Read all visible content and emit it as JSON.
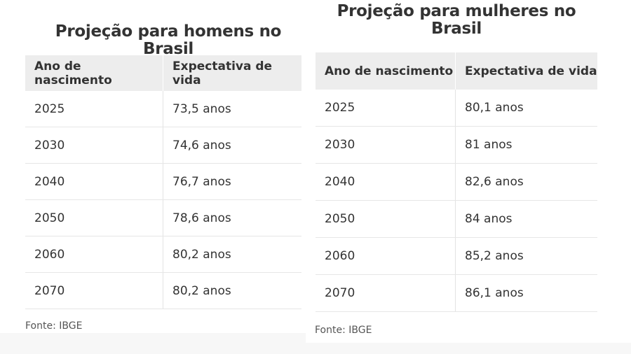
{
  "men": {
    "title": "Projeção para homens no Brasil",
    "headers": [
      "Ano de nascimento",
      "Expectativa de vida"
    ],
    "rows": [
      [
        "2025",
        "73,5 anos"
      ],
      [
        "2030",
        "74,6 anos"
      ],
      [
        "2040",
        "76,7 anos"
      ],
      [
        "2050",
        "78,6 anos"
      ],
      [
        "2060",
        "80,2 anos"
      ],
      [
        "2070",
        "80,2 anos"
      ]
    ],
    "source": "Fonte: IBGE"
  },
  "women": {
    "title_line1": "Projeção para mulheres no",
    "title_line2": "Brasil",
    "headers": [
      "Ano de nascimento",
      "Expectativa de vida"
    ],
    "rows": [
      [
        "2025",
        "80,1 anos"
      ],
      [
        "2030",
        "81 anos"
      ],
      [
        "2040",
        "82,6 anos"
      ],
      [
        "2050",
        "84 anos"
      ],
      [
        "2060",
        "85,2 anos"
      ],
      [
        "2070",
        "86,1 anos"
      ]
    ],
    "source": "Fonte: IBGE"
  }
}
